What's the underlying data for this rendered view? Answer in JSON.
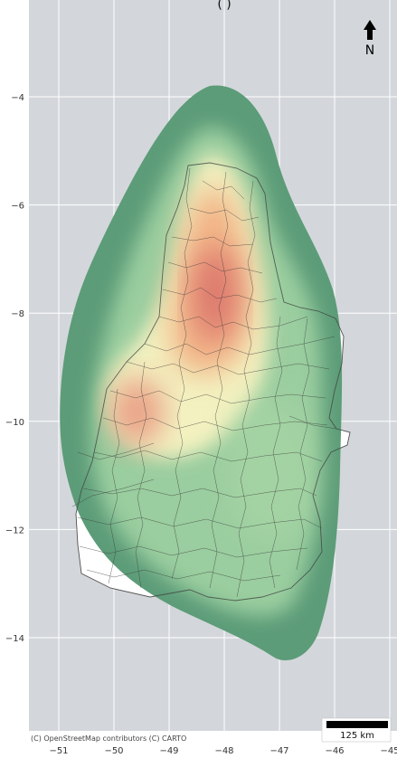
{
  "title_fragment": "(                                        )",
  "map": {
    "background": "#d3d7db",
    "grid_color": "#ffffff",
    "x_ticks": [
      {
        "label": "−51",
        "value": -51
      },
      {
        "label": "−50",
        "value": -50
      },
      {
        "label": "−49",
        "value": -49
      },
      {
        "label": "−48",
        "value": -48
      },
      {
        "label": "−47",
        "value": -47
      },
      {
        "label": "−46",
        "value": -46
      },
      {
        "label": "−45",
        "value": -45
      }
    ],
    "y_ticks": [
      {
        "label": "−4",
        "value": -4
      },
      {
        "label": "−6",
        "value": -6
      },
      {
        "label": "−8",
        "value": -8
      },
      {
        "label": "−10",
        "value": -10
      },
      {
        "label": "−12",
        "value": -12
      },
      {
        "label": "−14",
        "value": -14
      }
    ],
    "attribution": "(C) OpenStreetMap contributors (C) CARTO",
    "scale_bar": {
      "label": "125 km"
    },
    "north_arrow": {
      "label": "N",
      "icon": "north-arrow-icon"
    },
    "density_colors": [
      "#5a9a74",
      "#8fc79a",
      "#c4e3b0",
      "#f4f2c2",
      "#f6d49a",
      "#ef9f86",
      "#d86f6a"
    ]
  }
}
